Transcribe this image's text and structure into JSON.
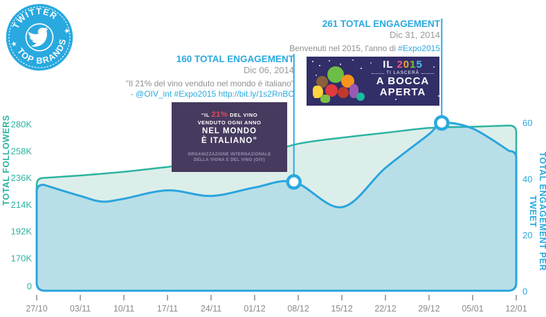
{
  "badge": {
    "top": "TWITTER",
    "bottom": "TOP BRANDS",
    "color": "#29A9E0",
    "icon": "twitter-bird"
  },
  "annotations": [
    {
      "title": "160 TOTAL ENGAGEMENT",
      "date": "Dic 06, 2014",
      "quote": "\"Il 21% del vino venduto nel mondo è italiano\"",
      "attribution_prefix": "- ",
      "attribution_links": "@OIV_int #Expo2015 http://bit.ly/1s2RnBC"
    },
    {
      "title": "261 TOTAL ENGAGEMENT",
      "date": "Dic 31, 2014",
      "text_prefix": "Benvenuti nel 2015, l'anno di ",
      "hashtag": "#Expo2015"
    }
  ],
  "quote_card": {
    "l1a": "“IL ",
    "l1b": "21%",
    "l1c": " DEL VINO",
    "l2": "VENDUTO OGNI ANNO",
    "l3": "NEL MONDO",
    "l4": "È ITALIANO”",
    "org1": "ORGANIZZAZIONE INTERNAZIONALE",
    "org2": "DELLA VIGNA E DEL VINO (OIV)",
    "accent_color": "#E14B5F",
    "background": "#463B5E"
  },
  "bocca_card": {
    "il": "IL",
    "year": "2015",
    "year_colors": [
      "#F0568C",
      "#F5A623",
      "#7DC242",
      "#4AC0E8"
    ],
    "sub": "TI LASCERÀ",
    "line1": "A BOCCA",
    "line2": "APERTA",
    "background": "#322E68"
  },
  "axes": {
    "left_title": "TOTAL FOLLOWERS",
    "right_title": "TOTAL ENGAGEMENT PER TWEET"
  },
  "chart_data": {
    "type": "area",
    "title": "Twitter Top Brands — Expo2015 followers vs engagement",
    "categories": [
      "27/10",
      "03/11",
      "10/11",
      "17/11",
      "24/11",
      "01/12",
      "08/12",
      "15/12",
      "22/12",
      "29/12",
      "05/01",
      "12/01"
    ],
    "series": [
      {
        "name": "Total Followers",
        "axis": "left",
        "unit": "K followers",
        "color": "#2CB3A0",
        "fill": "#DCEEEA",
        "values": [
          236,
          238,
          241,
          245,
          249,
          254,
          264,
          269,
          273,
          277,
          278,
          279
        ]
      },
      {
        "name": "Total Engagement per Tweet",
        "axis": "right",
        "color": "#2AA4DE",
        "fill": "rgba(42,164,222,0.20)",
        "points_x_index_value": [
          [
            0,
            38
          ],
          [
            1,
            34
          ],
          [
            1.5,
            32
          ],
          [
            2,
            33
          ],
          [
            3,
            36
          ],
          [
            4,
            34
          ],
          [
            5,
            37
          ],
          [
            5.9,
            39
          ],
          [
            7,
            30
          ],
          [
            8,
            44
          ],
          [
            9,
            56
          ],
          [
            9.29,
            60
          ],
          [
            10,
            58
          ],
          [
            11,
            50
          ]
        ]
      }
    ],
    "left_axis": {
      "title": "TOTAL FOLLOWERS",
      "tick_labels": [
        "280K",
        "258K",
        "236K",
        "214K",
        "192K",
        "170K"
      ],
      "tick_values": [
        280,
        258,
        236,
        214,
        192,
        170
      ],
      "zero_label": "0",
      "color": "#2CB3A0"
    },
    "right_axis": {
      "title": "TOTAL ENGAGEMENT PER TWEET",
      "tick_values": [
        60,
        40,
        20,
        0
      ],
      "color": "#29A9E0",
      "range": [
        0,
        60
      ]
    },
    "markers": [
      {
        "x_index": 5.9,
        "value": 39,
        "date": "Dic 06, 2014",
        "total_engagement": 160,
        "callout_top_y": 78
      },
      {
        "x_index": 9.29,
        "value": 60,
        "date": "Dic 31, 2014",
        "total_engagement": 261,
        "callout_top_y": 27
      }
    ],
    "grid": false,
    "legend": false
  }
}
